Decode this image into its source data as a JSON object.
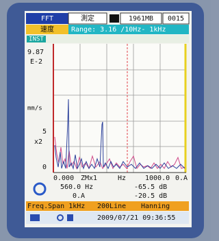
{
  "header": {
    "mode": "FFT",
    "state": "測定",
    "storage": "1961MB",
    "file_number": "0015"
  },
  "range_bar": {
    "quantity": "速度",
    "range": "Range: 3.16 /10Hz- 1kHz"
  },
  "inst": "INST",
  "plot": {
    "y_top": "9.87",
    "y_exp": "E-2",
    "y_unit": "mm/s",
    "y_mid": "5",
    "y_scale": "x2",
    "y_zero": "0"
  },
  "readout": {
    "x_start": "0.000",
    "zoom": "ZMx1",
    "x_unit": "Hz",
    "x_end": "1000.0",
    "x_end_flag": "0.A",
    "cursor_freq": "560.0 Hz",
    "cursor_level": "-65.5 dB",
    "cursor_flag": "0.A",
    "cursor_level2": "-20.5 dB"
  },
  "settings": {
    "freq_span": "Freq.Span 1kHz",
    "lines": "200Line",
    "window": "Hanning"
  },
  "status": {
    "datetime": "2009/07/21 09:36:55"
  }
}
